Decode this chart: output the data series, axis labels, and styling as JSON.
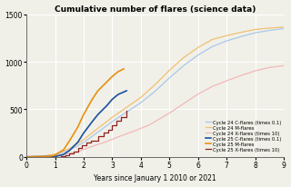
{
  "title": "Cumulative number of flares (science data)",
  "xlabel": "Years since January 1 2010 or 2021",
  "xlim": [
    0,
    9
  ],
  "ylim": [
    0,
    1500
  ],
  "yticks": [
    0,
    500,
    1000,
    1500
  ],
  "xticks": [
    0,
    1,
    2,
    3,
    4,
    5,
    6,
    7,
    8,
    9
  ],
  "legend_entries": [
    "Cycle 24 C-flares (times 0.1)",
    "Cycle 24 M-flares",
    "Cycle 24 X-flares (times 10)",
    "Cycle 25 C-flares (times 0.1)",
    "Cycle 25 M-flares",
    "Cycle 25 X-flares (times 10)"
  ],
  "colors": {
    "c24_C": "#aac8e8",
    "c24_M": "#f0c070",
    "c24_X": "#f0b8b8",
    "c25_C": "#1a50a0",
    "c25_M": "#e89010",
    "c25_X": "#902020"
  },
  "background": "#f0f0e8",
  "grid_color": "#ffffff",
  "c24_C_x": [
    0,
    0.5,
    1.0,
    1.5,
    2.0,
    2.5,
    3.0,
    3.5,
    4.0,
    4.5,
    5.0,
    5.5,
    6.0,
    6.5,
    7.0,
    7.5,
    8.0,
    8.5,
    9.0
  ],
  "c24_C_y": [
    0,
    3,
    20,
    70,
    150,
    260,
    370,
    470,
    570,
    690,
    830,
    960,
    1070,
    1160,
    1220,
    1265,
    1305,
    1330,
    1350
  ],
  "c24_M_x": [
    0,
    0.5,
    1.0,
    1.5,
    2.0,
    2.5,
    3.0,
    3.5,
    4.0,
    4.5,
    5.0,
    5.5,
    6.0,
    6.5,
    7.0,
    7.5,
    8.0,
    8.5,
    9.0
  ],
  "c24_M_y": [
    0,
    4,
    28,
    85,
    180,
    300,
    415,
    520,
    625,
    760,
    910,
    1045,
    1150,
    1235,
    1275,
    1310,
    1340,
    1355,
    1365
  ],
  "c24_X_x": [
    0,
    0.8,
    1.2,
    1.8,
    2.3,
    2.8,
    3.3,
    3.8,
    4.3,
    5.0,
    5.5,
    6.0,
    6.5,
    7.0,
    7.5,
    8.0,
    8.5,
    9.0
  ],
  "c24_X_y": [
    0,
    3,
    15,
    55,
    110,
    160,
    220,
    275,
    335,
    460,
    560,
    660,
    740,
    800,
    855,
    905,
    940,
    960
  ],
  "c25_C_x": [
    0,
    1.0,
    1.3,
    1.5,
    1.8,
    2.0,
    2.3,
    2.5,
    2.8,
    3.0,
    3.2,
    3.5
  ],
  "c25_C_y": [
    0,
    3,
    25,
    65,
    155,
    250,
    370,
    445,
    535,
    605,
    655,
    695
  ],
  "c25_M_x": [
    0,
    0.8,
    1.0,
    1.3,
    1.5,
    1.8,
    2.0,
    2.3,
    2.5,
    2.8,
    3.0,
    3.2,
    3.4
  ],
  "c25_M_y": [
    0,
    3,
    18,
    75,
    165,
    315,
    445,
    605,
    695,
    785,
    845,
    895,
    925
  ],
  "c25_X_x": [
    0,
    1.2,
    1.35,
    1.5,
    1.65,
    1.8,
    1.95,
    2.1,
    2.25,
    2.5,
    2.7,
    2.85,
    3.0,
    3.15,
    3.3,
    3.5
  ],
  "c25_X_y": [
    0,
    3,
    18,
    38,
    58,
    95,
    125,
    148,
    172,
    215,
    255,
    285,
    335,
    375,
    415,
    480
  ]
}
